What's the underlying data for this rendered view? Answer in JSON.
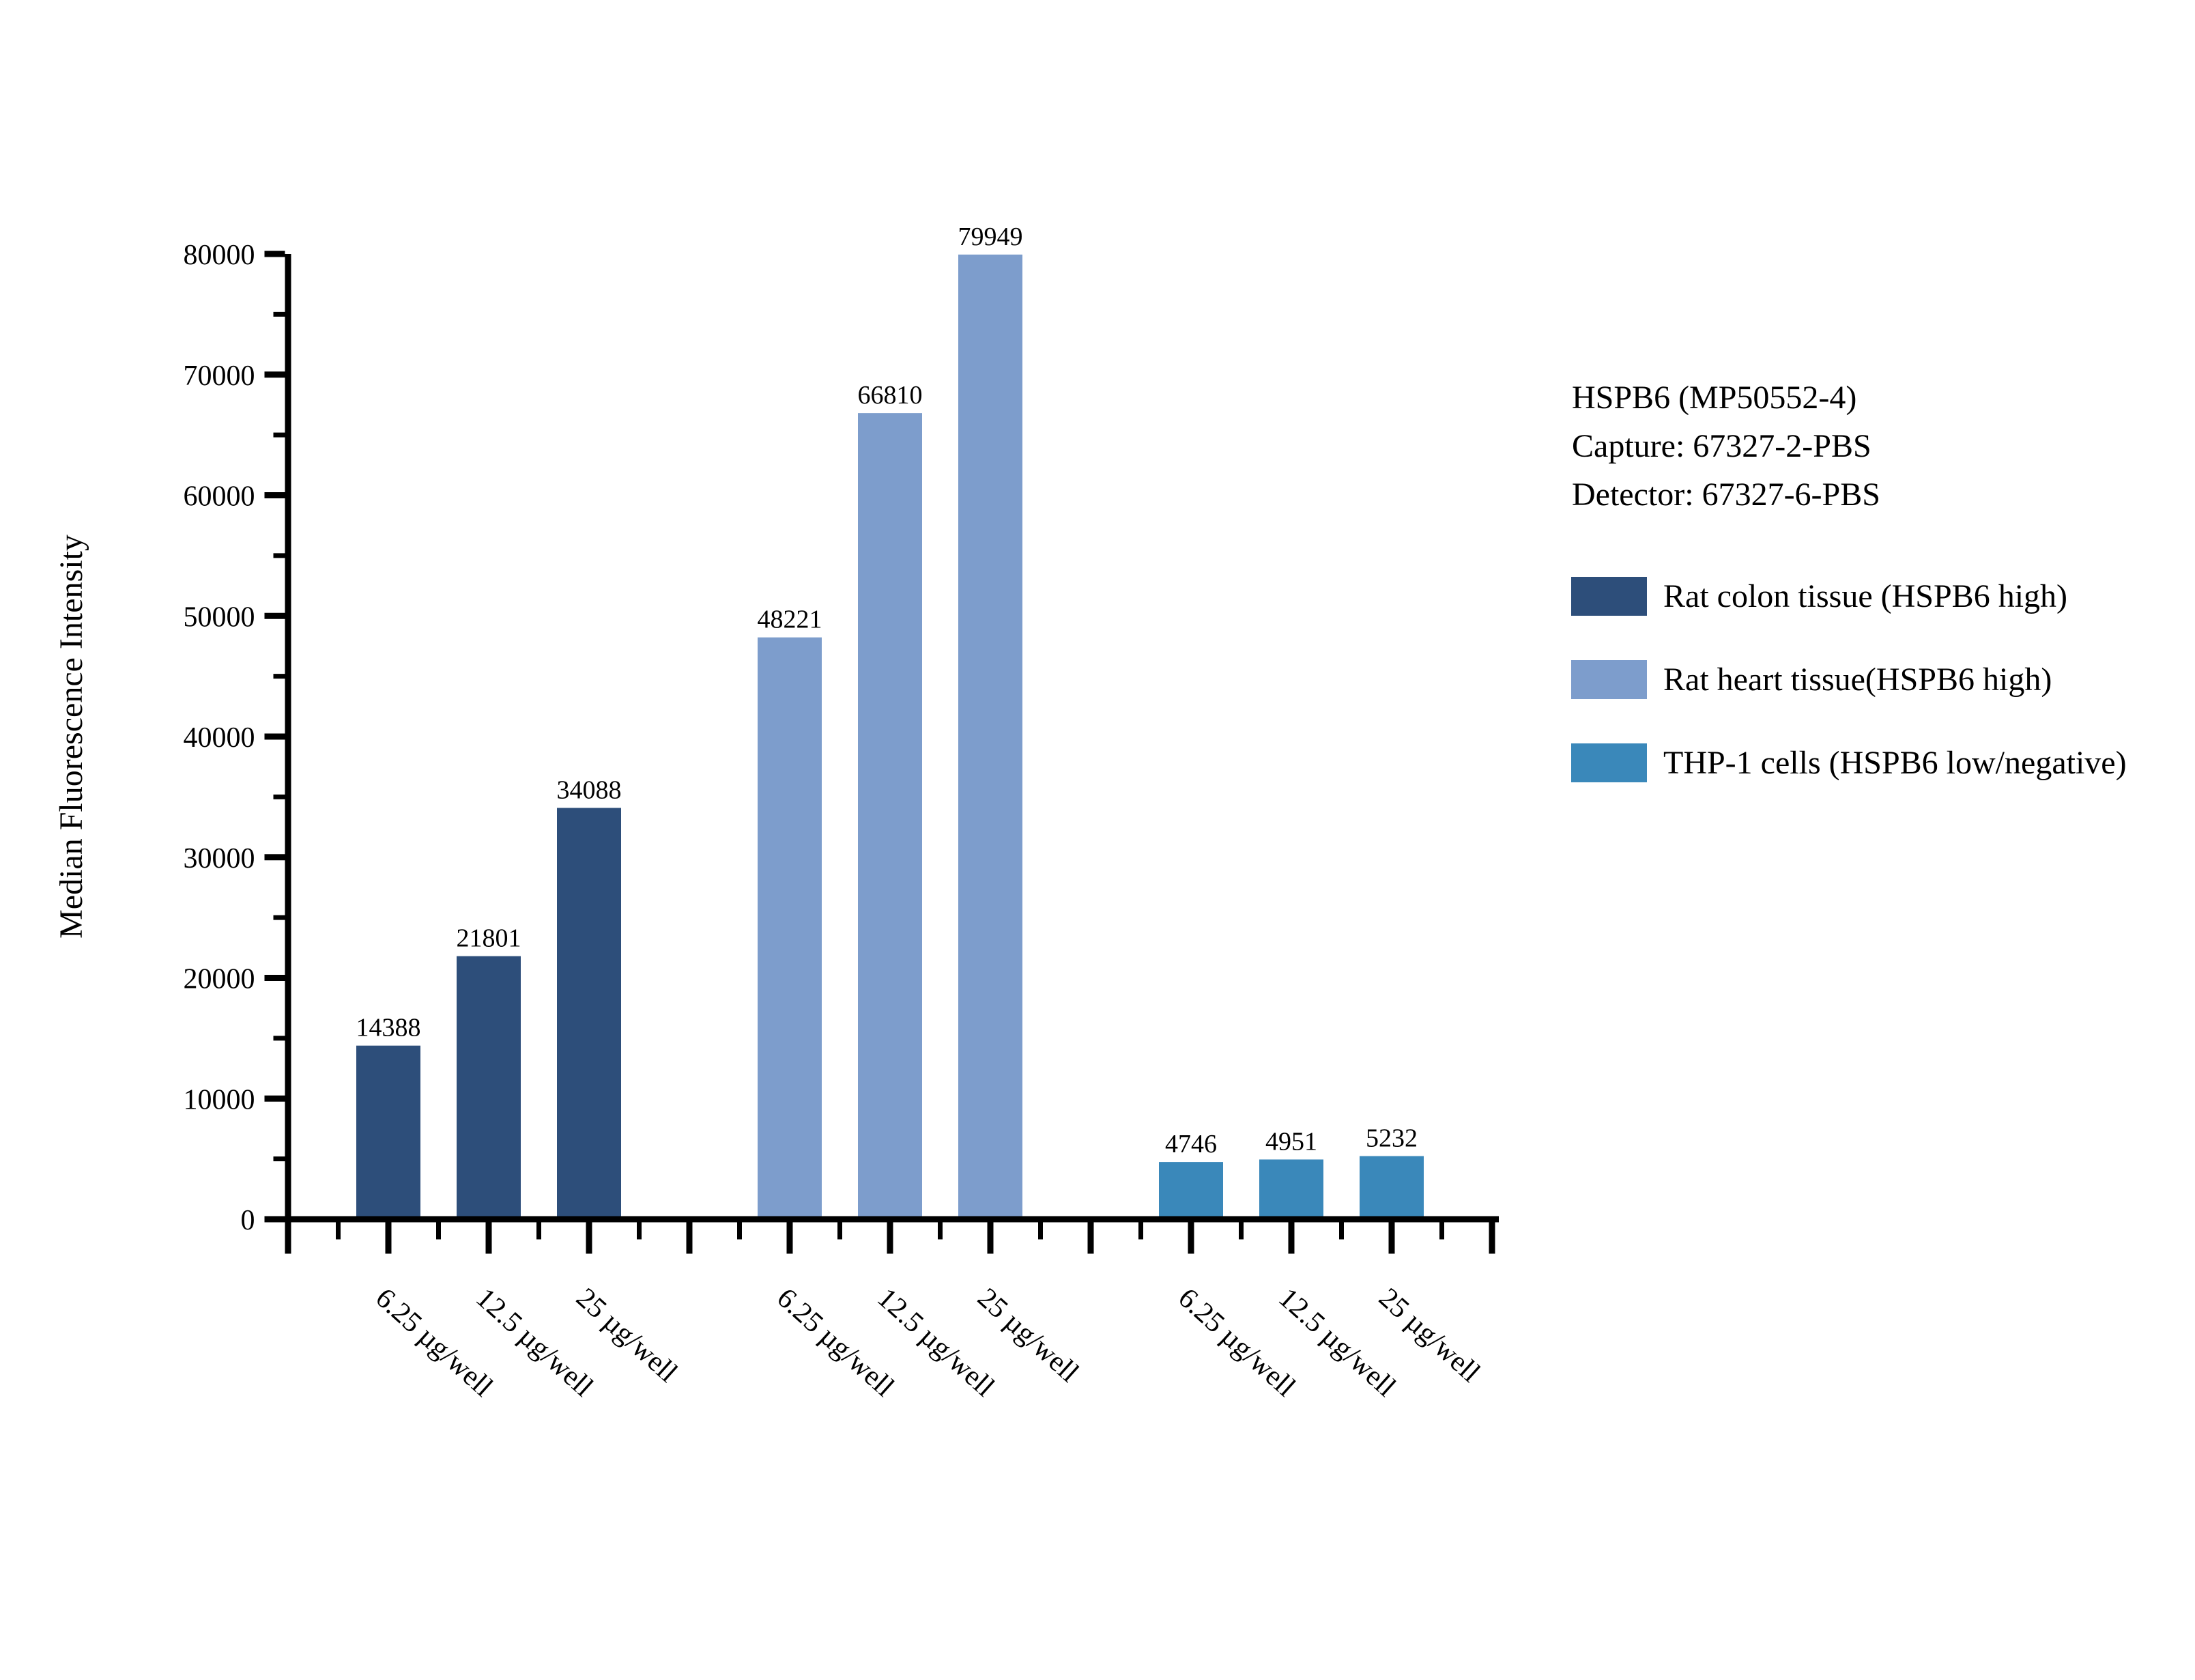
{
  "chart_data": {
    "type": "bar",
    "title": "",
    "xlabel": "",
    "ylabel": "Median Fluorescence Intensity",
    "ylim": [
      0,
      80000
    ],
    "yticks": [
      0,
      10000,
      20000,
      30000,
      40000,
      50000,
      60000,
      70000,
      80000
    ],
    "ytick_labels": [
      "0",
      "10000",
      "20000",
      "30000",
      "40000",
      "50000",
      "60000",
      "70000",
      "80000"
    ],
    "yminor_step": 5000,
    "grid": false,
    "bar_value_labels_shown": true,
    "legend_position": "right-of-plot",
    "categories": [
      "6.25 µg/well",
      "12.5 µg/well",
      "25 µg/well"
    ],
    "series": [
      {
        "name": "Rat colon tissue (HSPB6 high)",
        "color": "#2d4e7a",
        "values": [
          14388,
          21801,
          34088
        ]
      },
      {
        "name": "Rat heart tissue(HSPB6 high)",
        "color": "#7d9dcc",
        "values": [
          48221,
          66810,
          79949
        ]
      },
      {
        "name": "THP-1 cells (HSPB6 low/negative)",
        "color": "#3a88ba",
        "values": [
          4746,
          4951,
          5232
        ]
      }
    ],
    "annotation": [
      "HSPB6 (MP50552-4)",
      "Capture: 67327-2-PBS",
      "Detector: 67327-6-PBS"
    ]
  }
}
